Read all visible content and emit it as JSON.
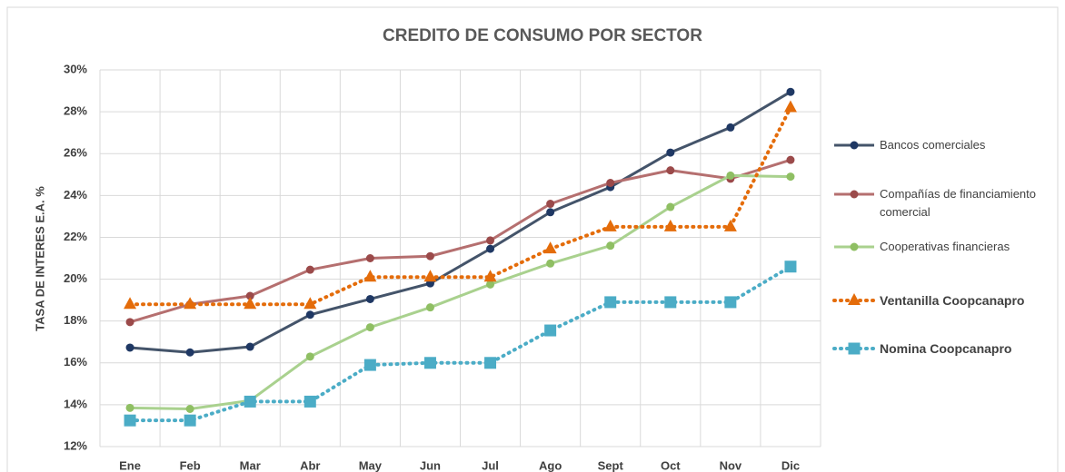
{
  "chart_data": {
    "type": "line",
    "title": "CREDITO DE CONSUMO POR SECTOR",
    "y_label": "TASA DE INTERES E.A. %",
    "categories": [
      "Ene",
      "Feb",
      "Mar",
      "Abr",
      "May",
      "Jun",
      "Jul",
      "Ago",
      "Sept",
      "Oct",
      "Nov",
      "Dic"
    ],
    "ylim": [
      12,
      30
    ],
    "yticks": [
      {
        "value": 12,
        "label": "12%"
      },
      {
        "value": 14,
        "label": "14%"
      },
      {
        "value": 16,
        "label": "16%"
      },
      {
        "value": 18,
        "label": "18%"
      },
      {
        "value": 20,
        "label": "20%"
      },
      {
        "value": 22,
        "label": "22%"
      },
      {
        "value": 24,
        "label": "24%"
      },
      {
        "value": 26,
        "label": "26%"
      },
      {
        "value": 28,
        "label": "28%"
      },
      {
        "value": 30,
        "label": "30%"
      }
    ],
    "grid": true,
    "legend": "right",
    "series": [
      {
        "name": "Bancos comerciales",
        "color": "#44546a",
        "marker_color": "#1f3864",
        "marker": "circle",
        "line_style": "solid",
        "values": [
          16.73,
          16.5,
          16.77,
          18.3,
          19.05,
          19.8,
          21.45,
          23.2,
          24.4,
          26.05,
          27.25,
          28.95
        ]
      },
      {
        "name": "Compañías de financiamiento comercial",
        "color": "#b56f6f",
        "marker_color": "#9b4a4a",
        "marker": "circle",
        "line_style": "solid",
        "values": [
          17.95,
          18.8,
          19.2,
          20.45,
          21.0,
          21.1,
          21.85,
          23.6,
          24.6,
          25.2,
          24.8,
          25.7
        ]
      },
      {
        "name": "Cooperativas financieras",
        "color": "#a9d18e",
        "marker_color": "#8fbf63",
        "marker": "circle",
        "line_style": "solid",
        "values": [
          13.85,
          13.8,
          14.2,
          16.3,
          17.7,
          18.65,
          19.75,
          20.75,
          21.6,
          23.45,
          24.95,
          24.9
        ]
      },
      {
        "name": "Ventanilla Coopcanapro",
        "color": "#e46c0a",
        "marker_color": "#e46c0a",
        "marker": "triangle",
        "line_style": "dotted",
        "values": [
          18.8,
          18.8,
          18.8,
          18.8,
          20.1,
          20.1,
          20.1,
          21.45,
          22.5,
          22.5,
          22.5,
          28.2
        ]
      },
      {
        "name": "Nomina Coopcanapro",
        "color": "#4bacc6",
        "marker_color": "#4bacc6",
        "marker": "square",
        "line_style": "dotted",
        "values": [
          13.25,
          13.25,
          14.15,
          14.15,
          15.9,
          16.0,
          16.0,
          17.55,
          18.9,
          18.9,
          18.9,
          20.6
        ]
      }
    ]
  }
}
